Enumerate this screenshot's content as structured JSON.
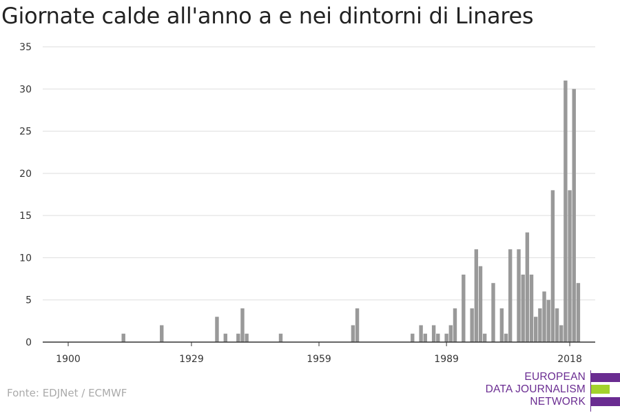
{
  "title": "Giornate calde all'anno a e nei dintorni di Linares",
  "source": "Fonte: EDJNet / ECMWF",
  "logo": {
    "lines": [
      "EUROPEAN",
      "DATA JOURNALISM",
      "NETWORK"
    ],
    "colors": {
      "primary": "#6a2c91",
      "accent": "#a3d32c"
    }
  },
  "colors": {
    "bar": "#999999",
    "grid": "#dddddd",
    "axis": "#333333"
  },
  "chart_data": {
    "type": "bar",
    "title": "Giornate calde all'anno a e nei dintorni di Linares",
    "xlabel": "",
    "ylabel": "",
    "ylim": [
      0,
      35
    ],
    "y_ticks": [
      0,
      5,
      10,
      15,
      20,
      25,
      30,
      35
    ],
    "x_ticks": [
      1900,
      1929,
      1959,
      1989,
      2018
    ],
    "xlim": [
      1900,
      2018
    ],
    "grid": true,
    "legend": "none",
    "x": [
      1913,
      1922,
      1935,
      1937,
      1940,
      1941,
      1942,
      1950,
      1967,
      1968,
      1981,
      1983,
      1984,
      1986,
      1987,
      1989,
      1990,
      1991,
      1993,
      1995,
      1996,
      1997,
      1998,
      2000,
      2002,
      2003,
      2004,
      2006,
      2007,
      2008,
      2009,
      2010,
      2011,
      2012,
      2013,
      2014,
      2015,
      2016,
      2017,
      2018,
      2019,
      2020
    ],
    "values": [
      1,
      2,
      3,
      1,
      1,
      4,
      1,
      1,
      2,
      4,
      1,
      2,
      1,
      2,
      1,
      1,
      2,
      4,
      8,
      4,
      11,
      9,
      1,
      7,
      4,
      1,
      11,
      11,
      8,
      13,
      8,
      3,
      4,
      6,
      5,
      18,
      4,
      2,
      31,
      18,
      30,
      7
    ]
  }
}
